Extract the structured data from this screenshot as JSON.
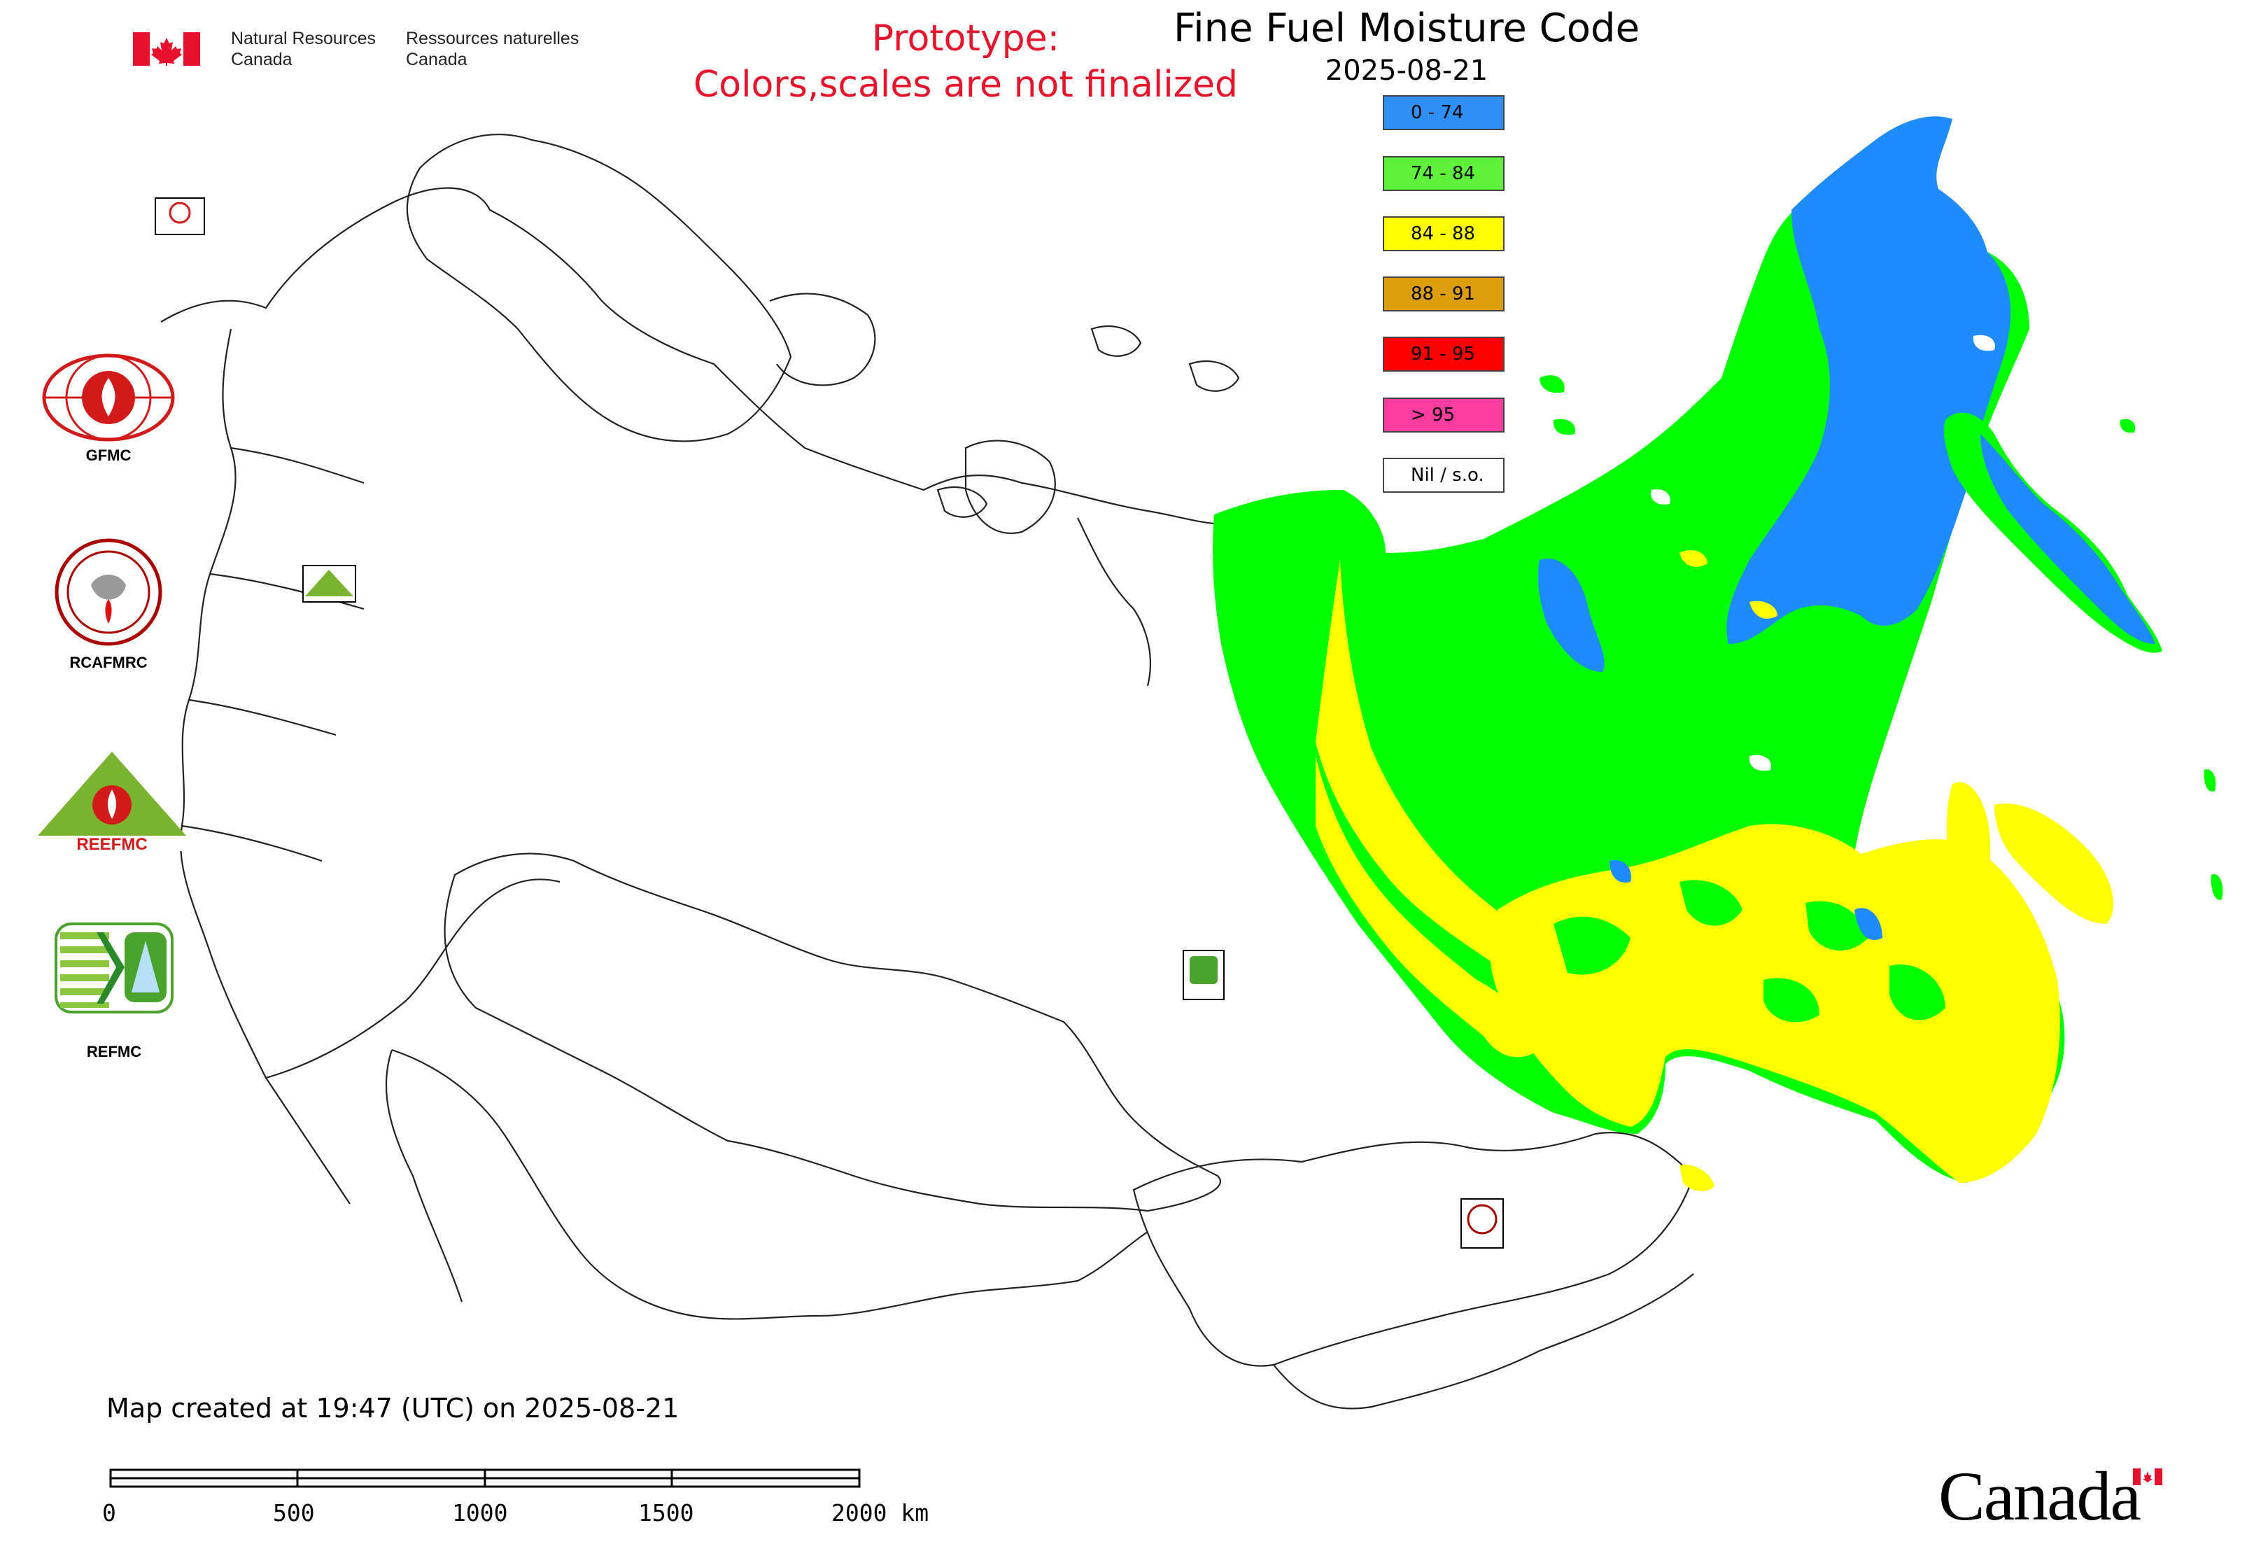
{
  "header": {
    "agency_en": [
      "Natural Resources",
      "Canada"
    ],
    "agency_fr": [
      "Ressources naturelles",
      "Canada"
    ],
    "prototype_line1": "Prototype:",
    "prototype_line2": "Colors,scales are not finalized"
  },
  "map": {
    "title": "Fine Fuel Moisture Code",
    "date": "2025-08-21"
  },
  "legend": {
    "items": [
      {
        "label": "0 - 74",
        "color": "#2e8ff4"
      },
      {
        "label": "74 - 84",
        "color": "#5ef23a"
      },
      {
        "label": "84 - 88",
        "color": "#ffff00"
      },
      {
        "label": "88 - 91",
        "color": "#dc9e0a"
      },
      {
        "label": "91 - 95",
        "color": "#ff0000"
      },
      {
        "label": "> 95",
        "color": "#ff3ca0"
      },
      {
        "label": "Nil / s.o.",
        "color": "#ffffff"
      }
    ]
  },
  "logos": {
    "gfmc": "GFMC",
    "rcafmrc": "RCAFMRC",
    "reefmc": "REEFMC",
    "refmc": "REFMC"
  },
  "footer": {
    "created": "Map created at 19:47 (UTC) on 2025-08-21",
    "scale_labels": [
      "0",
      "500",
      "1000",
      "1500",
      "2000 km"
    ],
    "wordmark": "Canada"
  },
  "colors": {
    "green": "#00ff00",
    "yellow": "#ffff00",
    "blue": "#1e8cff",
    "red_text": "#e8142c"
  }
}
